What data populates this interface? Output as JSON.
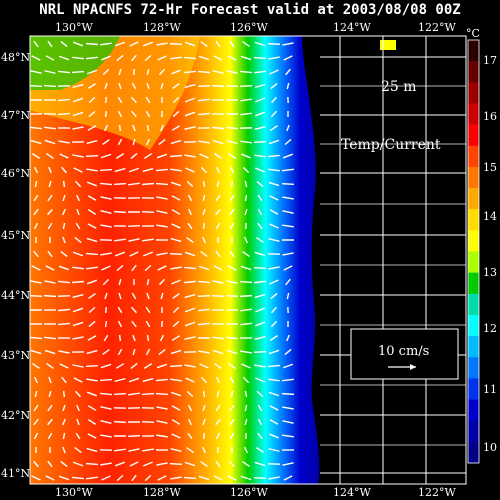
{
  "title": "NRL NPACNFS 72-Hr Forecast valid at 2003/08/08 00Z",
  "depth_label": "25 m",
  "field_label": "Temp/Current",
  "vector_scale_label": "10 cm/s",
  "lon_ticks": [
    "130°W",
    "128°W",
    "126°W",
    "124°W",
    "122°W"
  ],
  "lat_ticks": [
    "48°N",
    "47°N",
    "46°N",
    "45°N",
    "44°N",
    "43°N",
    "42°N",
    "41°N"
  ],
  "colorbar": {
    "unit": "°C",
    "labels": [
      "17",
      "16",
      "15",
      "14",
      "13",
      "12",
      "11",
      "10"
    ],
    "colors": [
      "#2a0000",
      "#660000",
      "#9a0000",
      "#cc0000",
      "#ff0000",
      "#ff4400",
      "#ff7700",
      "#ffaa00",
      "#ffdd00",
      "#ffff00",
      "#aaff00",
      "#00cc00",
      "#00ddaa",
      "#00ffff",
      "#00bbff",
      "#0077ff",
      "#0033ee",
      "#0000cc",
      "#0000aa",
      "#000088"
    ]
  },
  "colors": {
    "land": "#000000",
    "grid": "#ffffff",
    "vectors": "#ffffff"
  }
}
